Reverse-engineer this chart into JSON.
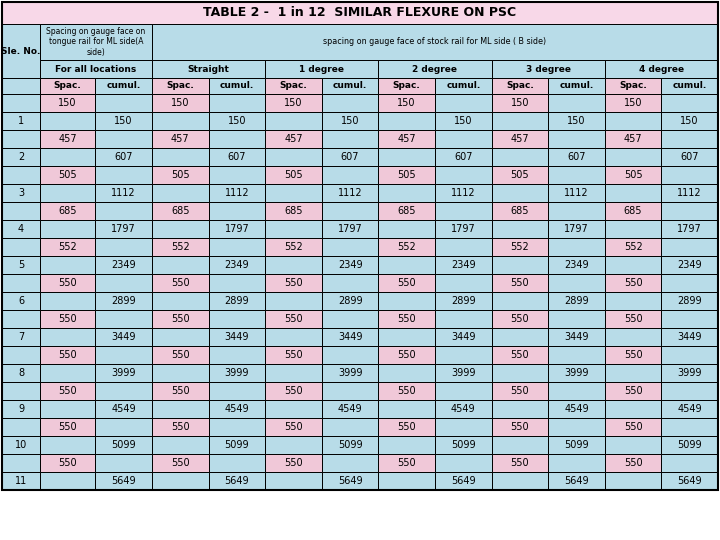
{
  "title": "TABLE 2 -  1 in 12  SIMILAR FLEXURE ON PSC",
  "title_bg": "#f8d8e8",
  "cyan_bg": "#b8dce8",
  "pink_bg": "#f0c8d8",
  "white_bg": "#ffffff",
  "col3_header": "spacing on gauge face of stock rail for ML side ( B side)",
  "sub_headers": [
    "For all locations",
    "Straight",
    "1 degree",
    "2 degree",
    "3 degree",
    "4 degree"
  ],
  "data_rows": [
    {
      "sle": "",
      "spac_a": 150,
      "cumul_a": "",
      "vals": [
        150,
        "",
        150,
        "",
        150,
        "",
        150,
        "",
        150,
        "",
        150,
        ""
      ]
    },
    {
      "sle": 1,
      "spac_a": "",
      "cumul_a": 150,
      "vals": [
        "",
        150,
        "",
        150,
        "",
        150,
        "",
        150,
        "",
        150,
        "",
        150
      ]
    },
    {
      "sle": "",
      "spac_a": 457,
      "cumul_a": "",
      "vals": [
        457,
        "",
        457,
        "",
        457,
        "",
        457,
        "",
        457,
        "",
        457,
        ""
      ]
    },
    {
      "sle": 2,
      "spac_a": "",
      "cumul_a": 607,
      "vals": [
        "",
        607,
        "",
        607,
        "",
        607,
        "",
        607,
        "",
        607,
        "",
        607
      ]
    },
    {
      "sle": "",
      "spac_a": 505,
      "cumul_a": "",
      "vals": [
        505,
        "",
        505,
        "",
        505,
        "",
        505,
        "",
        505,
        "",
        505,
        ""
      ]
    },
    {
      "sle": 3,
      "spac_a": "",
      "cumul_a": 1112,
      "vals": [
        "",
        1112,
        "",
        1112,
        "",
        1112,
        "",
        1112,
        "",
        1112,
        "",
        1112
      ]
    },
    {
      "sle": "",
      "spac_a": 685,
      "cumul_a": "",
      "vals": [
        685,
        "",
        685,
        "",
        685,
        "",
        685,
        "",
        685,
        "",
        685,
        ""
      ]
    },
    {
      "sle": 4,
      "spac_a": "",
      "cumul_a": 1797,
      "vals": [
        "",
        1797,
        "",
        1797,
        "",
        1797,
        "",
        1797,
        "",
        1797,
        "",
        1797
      ]
    },
    {
      "sle": "",
      "spac_a": 552,
      "cumul_a": "",
      "vals": [
        552,
        "",
        552,
        "",
        552,
        "",
        552,
        "",
        552,
        "",
        552,
        ""
      ]
    },
    {
      "sle": 5,
      "spac_a": "",
      "cumul_a": 2349,
      "vals": [
        "",
        2349,
        "",
        2349,
        "",
        2349,
        "",
        2349,
        "",
        2349,
        "",
        2349
      ]
    },
    {
      "sle": "",
      "spac_a": 550,
      "cumul_a": "",
      "vals": [
        550,
        "",
        550,
        "",
        550,
        "",
        550,
        "",
        550,
        "",
        550,
        ""
      ]
    },
    {
      "sle": 6,
      "spac_a": "",
      "cumul_a": 2899,
      "vals": [
        "",
        2899,
        "",
        2899,
        "",
        2899,
        "",
        2899,
        "",
        2899,
        "",
        2899
      ]
    },
    {
      "sle": "",
      "spac_a": 550,
      "cumul_a": "",
      "vals": [
        550,
        "",
        550,
        "",
        550,
        "",
        550,
        "",
        550,
        "",
        550,
        ""
      ]
    },
    {
      "sle": 7,
      "spac_a": "",
      "cumul_a": 3449,
      "vals": [
        "",
        3449,
        "",
        3449,
        "",
        3449,
        "",
        3449,
        "",
        3449,
        "",
        3449
      ]
    },
    {
      "sle": "",
      "spac_a": 550,
      "cumul_a": "",
      "vals": [
        550,
        "",
        550,
        "",
        550,
        "",
        550,
        "",
        550,
        "",
        550,
        ""
      ]
    },
    {
      "sle": 8,
      "spac_a": "",
      "cumul_a": 3999,
      "vals": [
        "",
        3999,
        "",
        3999,
        "",
        3999,
        "",
        3999,
        "",
        3999,
        "",
        3999
      ]
    },
    {
      "sle": "",
      "spac_a": 550,
      "cumul_a": "",
      "vals": [
        550,
        "",
        550,
        "",
        550,
        "",
        550,
        "",
        550,
        "",
        550,
        ""
      ]
    },
    {
      "sle": 9,
      "spac_a": "",
      "cumul_a": 4549,
      "vals": [
        "",
        4549,
        "",
        4549,
        "",
        4549,
        "",
        4549,
        "",
        4549,
        "",
        4549
      ]
    },
    {
      "sle": "",
      "spac_a": 550,
      "cumul_a": "",
      "vals": [
        550,
        "",
        550,
        "",
        550,
        "",
        550,
        "",
        550,
        "",
        550,
        ""
      ]
    },
    {
      "sle": 10,
      "spac_a": "",
      "cumul_a": 5099,
      "vals": [
        "",
        5099,
        "",
        5099,
        "",
        5099,
        "",
        5099,
        "",
        5099,
        "",
        5099
      ]
    },
    {
      "sle": "",
      "spac_a": 550,
      "cumul_a": "",
      "vals": [
        550,
        "",
        550,
        "",
        550,
        "",
        550,
        "",
        550,
        "",
        550,
        ""
      ]
    },
    {
      "sle": 11,
      "spac_a": "",
      "cumul_a": 5649,
      "vals": [
        "",
        5649,
        "",
        5649,
        "",
        5649,
        "",
        5649,
        "",
        5649,
        "",
        5649
      ]
    }
  ]
}
